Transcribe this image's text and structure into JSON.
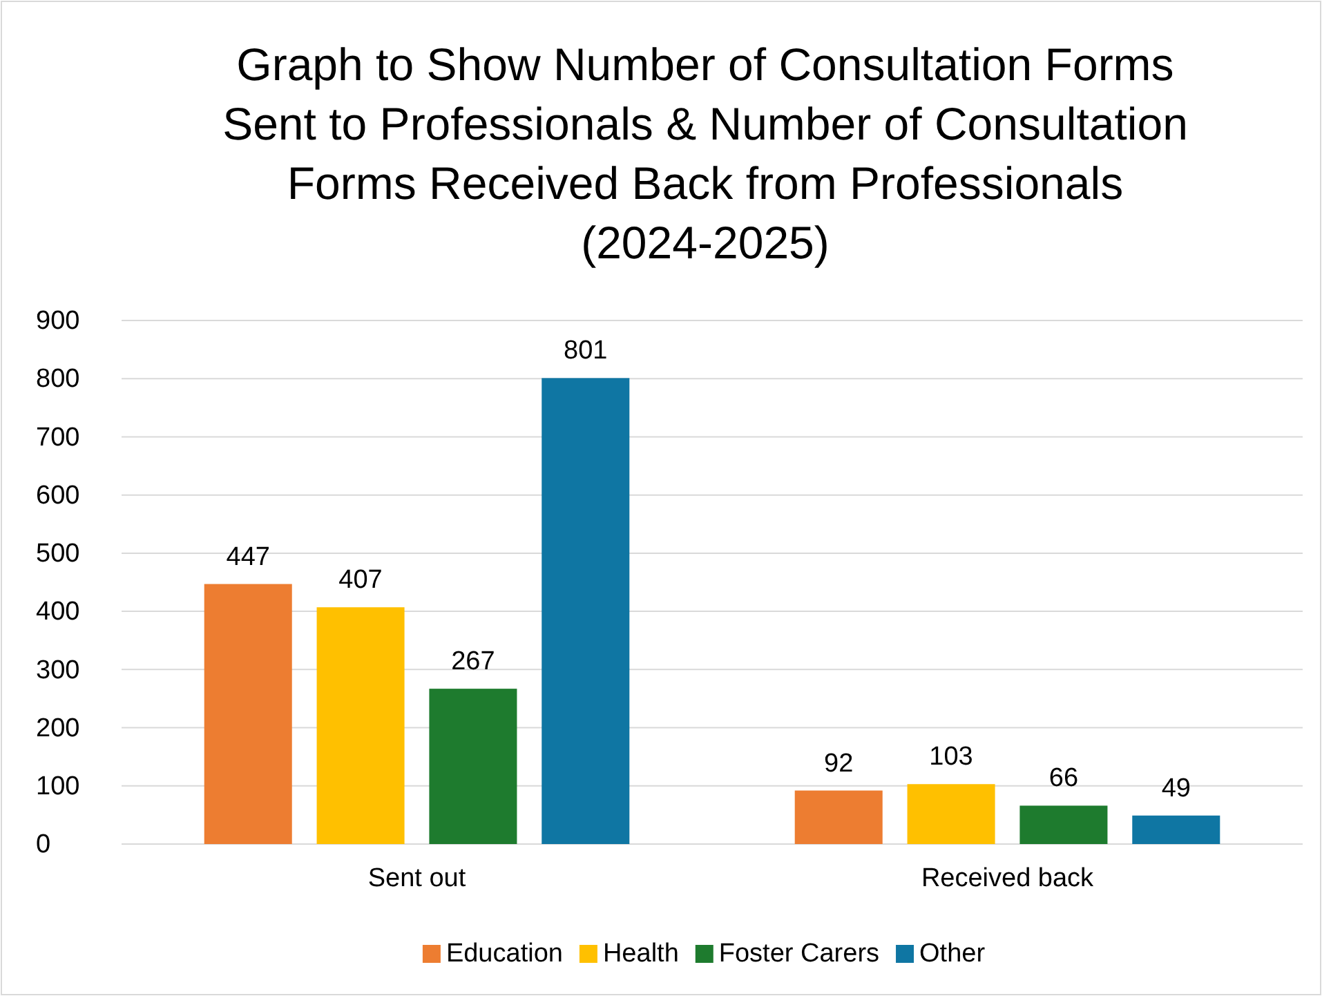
{
  "chart_data": {
    "type": "bar",
    "title": "Graph to Show Number of Consultation Forms Sent to Professionals & Number of Consultation Forms Received Back from Professionals (2024-2025)",
    "categories": [
      "Sent out",
      "Received back"
    ],
    "series": [
      {
        "name": "Education",
        "color": "#ed7d31",
        "values": [
          447,
          92
        ]
      },
      {
        "name": "Health",
        "color": "#ffc000",
        "values": [
          407,
          103
        ]
      },
      {
        "name": "Foster Carers",
        "color": "#1e7b2e",
        "values": [
          267,
          66
        ]
      },
      {
        "name": "Other",
        "color": "#0f76a3",
        "values": [
          801,
          49
        ]
      }
    ],
    "ylim": [
      0,
      900
    ],
    "yticks": [
      0,
      100,
      200,
      300,
      400,
      500,
      600,
      700,
      800,
      900
    ],
    "grid": "y",
    "legend": "bottom",
    "data_labels": true
  }
}
